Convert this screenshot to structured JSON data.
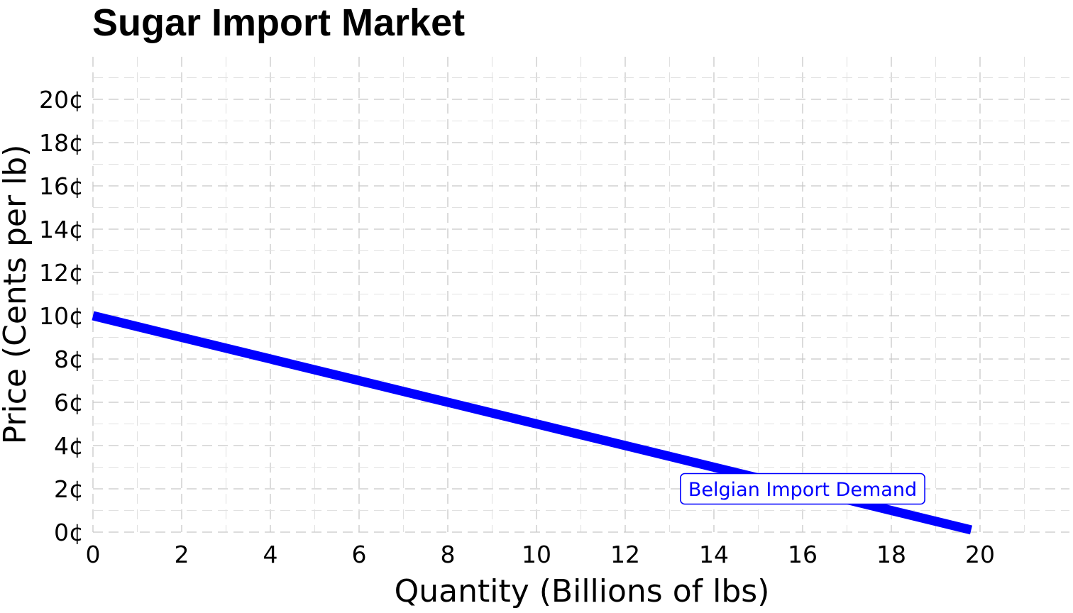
{
  "chart_data": {
    "type": "line",
    "title": "Sugar Import Market",
    "xlabel": "Quantity (Billions of lbs)",
    "ylabel": "Price (Cents per lb)",
    "xlim": [
      0,
      21.5
    ],
    "ylim": [
      0,
      21
    ],
    "x_ticks": [
      0,
      2,
      4,
      6,
      8,
      10,
      12,
      14,
      16,
      18,
      20
    ],
    "x_tick_labels": [
      "0",
      "2",
      "4",
      "6",
      "8",
      "10",
      "12",
      "14",
      "16",
      "18",
      "20"
    ],
    "y_ticks": [
      0,
      2,
      4,
      6,
      8,
      10,
      12,
      14,
      16,
      18,
      20
    ],
    "y_tick_labels": [
      "0¢",
      "2¢",
      "4¢",
      "6¢",
      "8¢",
      "10¢",
      "12¢",
      "14¢",
      "16¢",
      "18¢",
      "20¢"
    ],
    "grid": true,
    "series": [
      {
        "name": "Belgian Import Demand",
        "color": "#0000ff",
        "x": [
          0,
          19.8
        ],
        "y": [
          10,
          0.1
        ]
      }
    ],
    "annotations": [
      {
        "text": "Belgian Import Demand",
        "x": 16,
        "y": 2,
        "color": "#0000ff",
        "boxed": true
      }
    ]
  }
}
